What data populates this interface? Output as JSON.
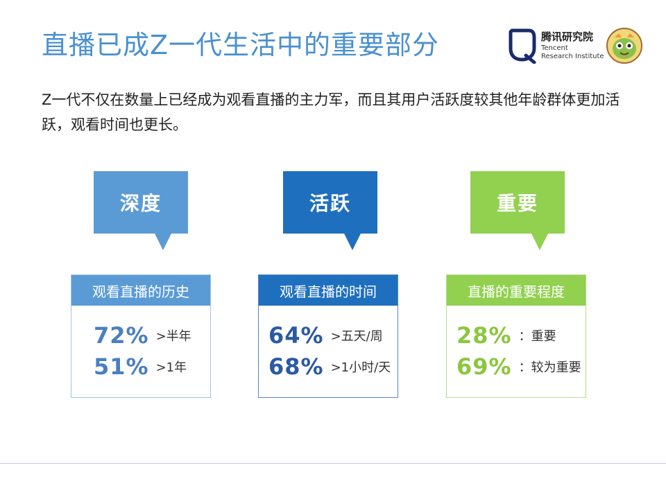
{
  "slide": {
    "title": "直播已成Z一代生活中的重要部分",
    "intro": "Z一代不仅在数量上已经成为观看直播的主力军，而且其用户活跃度较其他年龄群体更加活跃，观看时间也更长。"
  },
  "logo": {
    "name_cn": "腾讯研究院",
    "name_en_line1": "Tencent",
    "name_en_line2": "Research Institute"
  },
  "colors": {
    "title": "#4a90cf",
    "depth": "#5b9bd5",
    "active": "#1f6fbf",
    "important": "#92d050"
  },
  "columns": [
    {
      "callout": "深度",
      "header": "观看直播的历史",
      "stats": [
        {
          "value": "72%",
          "label": ">半年"
        },
        {
          "value": "51%",
          "label": ">1年"
        }
      ]
    },
    {
      "callout": "活跃",
      "header": "观看直播的时间",
      "stats": [
        {
          "value": "64%",
          "label": ">五天/周"
        },
        {
          "value": "68%",
          "label": ">1小时/天"
        }
      ]
    },
    {
      "callout": "重要",
      "header": "直播的重要程度",
      "stats": [
        {
          "value": "28%",
          "label": "：重要"
        },
        {
          "value": "69%",
          "label": "：较为重要"
        }
      ]
    }
  ]
}
